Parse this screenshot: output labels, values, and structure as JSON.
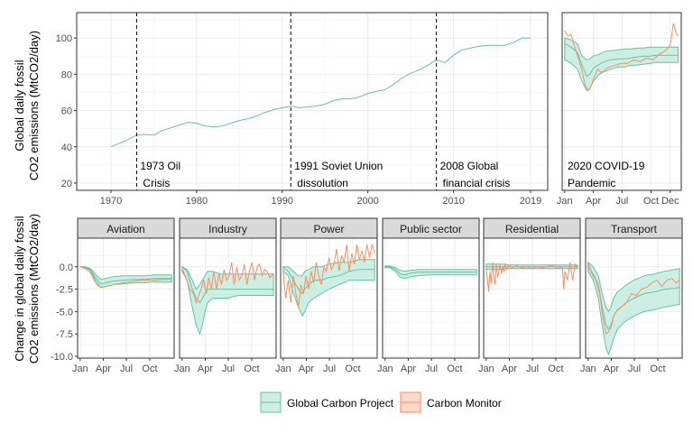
{
  "chart_data": [
    {
      "type": "line",
      "panel": "long-term",
      "ylabel_lines": [
        "Global daily fossil",
        "CO2 emissions (MtCO2/day)"
      ],
      "xlim": [
        1966,
        2021
      ],
      "ylim": [
        16,
        114
      ],
      "xticks": [
        1970,
        1980,
        1990,
        2000,
        2010
      ],
      "xtick_last_label": "2019",
      "xtick_last_value": 2019,
      "yticks": [
        20,
        40,
        60,
        80,
        100
      ],
      "grid": true,
      "series_color": "#66c2a5",
      "series": [
        {
          "name": "",
          "x": [
            1970,
            1971,
            1972,
            1973,
            1974,
            1975,
            1976,
            1977,
            1978,
            1979,
            1980,
            1981,
            1982,
            1983,
            1984,
            1985,
            1986,
            1987,
            1988,
            1989,
            1990,
            1991,
            1992,
            1993,
            1994,
            1995,
            1996,
            1997,
            1998,
            1999,
            2000,
            2001,
            2002,
            2003,
            2004,
            2005,
            2006,
            2007,
            2008,
            2009,
            2010,
            2011,
            2012,
            2013,
            2014,
            2015,
            2016,
            2017,
            2018,
            2019
          ],
          "y": [
            40,
            42,
            44,
            46.5,
            46.8,
            46.5,
            49,
            50.5,
            52,
            53.5,
            53,
            51.5,
            51,
            51.5,
            53,
            54.5,
            55.5,
            57,
            59,
            60.5,
            61.5,
            62.5,
            61.5,
            62,
            62.5,
            63.5,
            65.5,
            66.5,
            66.5,
            67.5,
            69.5,
            70.5,
            71.5,
            74.5,
            78,
            80.5,
            82.5,
            85,
            88,
            86.5,
            90.5,
            93.5,
            94.5,
            95.5,
            96,
            96,
            96,
            97.5,
            100,
            100
          ]
        }
      ],
      "events": [
        {
          "x": 1973,
          "lines": [
            "1973 Oil",
            "Crisis"
          ]
        },
        {
          "x": 1991,
          "lines": [
            "1991 Soviet Union",
            "dissolution"
          ]
        },
        {
          "x": 2008,
          "lines": [
            "2008 Global",
            "financial crisis"
          ]
        }
      ]
    },
    {
      "type": "line",
      "panel": "2020",
      "annotation_lines": [
        "2020 COVID-19",
        "Pandemic"
      ],
      "months": [
        "Jan",
        "Apr",
        "Jul",
        "Oct",
        "Dec"
      ],
      "month_days": [
        0,
        91,
        182,
        274,
        335
      ],
      "ylim": [
        16,
        114
      ],
      "grid": true,
      "gcp_days": [
        0,
        20,
        40,
        55,
        70,
        80,
        90,
        100,
        110,
        120,
        135,
        150,
        170,
        190,
        210,
        230,
        250,
        270,
        290,
        310,
        330,
        350,
        360
      ],
      "gcp_lower": [
        88,
        86,
        83,
        76,
        71,
        72,
        76,
        78,
        80,
        81,
        82,
        83,
        84,
        84,
        85,
        85,
        85.5,
        86,
        86.5,
        86.5,
        86.5,
        86.5,
        86.5
      ],
      "gcp_center": [
        97,
        95,
        92,
        85,
        79,
        80,
        83,
        84.5,
        85.5,
        86.5,
        87.5,
        88,
        88.5,
        88.5,
        89,
        89.5,
        90,
        90,
        90.5,
        90.5,
        90.5,
        90.5,
        90.5
      ],
      "gcp_upper": [
        100,
        99,
        97,
        90,
        88,
        88.5,
        90,
        90.5,
        91,
        92,
        93,
        93,
        93.5,
        94,
        94,
        94.5,
        94.5,
        95,
        95,
        95,
        95,
        95,
        95
      ],
      "cm_days": [
        0,
        10,
        20,
        30,
        45,
        55,
        65,
        75,
        85,
        95,
        105,
        115,
        125,
        140,
        160,
        180,
        200,
        220,
        240,
        260,
        280,
        300,
        320,
        335,
        345,
        355,
        360
      ],
      "cm_values": [
        104,
        101,
        102,
        96,
        88,
        82,
        74,
        71,
        74,
        79,
        83,
        81,
        82,
        84,
        85,
        86,
        86,
        88,
        87,
        89,
        88,
        91,
        93,
        96,
        108,
        102,
        101
      ]
    },
    {
      "type": "line",
      "panel": "sectors",
      "ylabel_lines": [
        "Change in global daily fossil",
        "CO2 emissions (MtCO2/day)"
      ],
      "ylim": [
        -10.2,
        3.2
      ],
      "yticks": [
        0,
        -2.5,
        -5,
        -7.5,
        -10
      ],
      "ytick_labels": [
        "0.0",
        "-2.5",
        "-5.0",
        "-7.5",
        "-10.0"
      ],
      "months": [
        "Jan",
        "Apr",
        "Jul",
        "Oct"
      ],
      "month_days": [
        0,
        91,
        182,
        274
      ],
      "grid": true,
      "panels": [
        {
          "name": "Aviation",
          "lo_days": [
            0,
            20,
            40,
            60,
            80,
            100,
            130,
            170,
            210,
            250,
            290,
            330,
            360
          ],
          "lo": [
            0,
            -0.1,
            -0.4,
            -1.5,
            -2.3,
            -2.2,
            -2.0,
            -1.9,
            -1.8,
            -1.8,
            -1.7,
            -1.7,
            -1.7
          ],
          "mid": [
            0,
            0,
            -0.3,
            -1.2,
            -1.9,
            -1.8,
            -1.6,
            -1.5,
            -1.4,
            -1.4,
            -1.3,
            -1.3,
            -1.3
          ],
          "hi": [
            0,
            0,
            -0.2,
            -0.8,
            -1.4,
            -1.3,
            -1.1,
            -1.0,
            -1.0,
            -1.0,
            -0.9,
            -0.9,
            -0.9
          ],
          "cm_days": [
            0,
            20,
            40,
            60,
            80,
            100,
            130,
            170,
            210,
            250,
            290,
            330,
            360
          ],
          "cm": [
            0,
            -0.2,
            -0.6,
            -1.8,
            -2.3,
            -2.2,
            -2.0,
            -1.8,
            -1.6,
            -1.5,
            -1.5,
            -1.4,
            -1.4
          ]
        },
        {
          "name": "Industry",
          "lo_days": [
            0,
            20,
            40,
            55,
            70,
            80,
            90,
            100,
            120,
            150,
            180,
            220,
            260,
            300,
            340,
            360
          ],
          "lo": [
            -0.5,
            -1.5,
            -4.5,
            -6.5,
            -7.5,
            -6.5,
            -5,
            -4,
            -3.5,
            -3.5,
            -3.5,
            -3.2,
            -3.2,
            -3.2,
            -3.2,
            -3.2
          ],
          "mid": [
            0,
            -0.5,
            -2.5,
            -3.5,
            -4,
            -3.5,
            -3,
            -2.5,
            -2.5,
            -2.5,
            -2.5,
            -2.5,
            -2.5,
            -2.5,
            -2.5,
            -2.5
          ],
          "hi": [
            0,
            -0.3,
            -1.5,
            -2.5,
            -2,
            -1.5,
            -1,
            -0.5,
            -0.5,
            -0.8,
            -0.8,
            -0.8,
            -0.8,
            -0.8,
            -0.8,
            -0.8
          ],
          "cm_days": [
            0,
            15,
            30,
            45,
            55,
            65,
            75,
            85,
            95,
            105,
            115,
            125,
            135,
            145,
            155,
            165,
            175,
            185,
            195,
            205,
            215,
            225,
            235,
            245,
            255,
            265,
            275,
            285,
            295,
            305,
            315,
            325,
            335,
            345,
            360
          ],
          "cm": [
            -0.2,
            -1.2,
            -2.5,
            -3,
            -4,
            -3.2,
            -2.5,
            -1.5,
            -3,
            -1.2,
            -2.5,
            -0.5,
            -2.5,
            -0.8,
            -2,
            -0.3,
            -1.5,
            -1,
            0.5,
            -2,
            0,
            -1.5,
            -1,
            0.3,
            -2,
            -0.5,
            0.5,
            -1.5,
            0,
            0.3,
            -1,
            -0.3,
            -0.5,
            -1.2,
            -0.8
          ]
        },
        {
          "name": "Power",
          "lo_days": [
            0,
            20,
            40,
            60,
            75,
            85,
            100,
            120,
            150,
            180,
            220,
            260,
            300,
            340,
            360
          ],
          "lo": [
            -0.5,
            -1,
            -3,
            -4.5,
            -5.5,
            -5,
            -4,
            -3.5,
            -3,
            -2.5,
            -2,
            -1.5,
            -1.5,
            -1.5,
            -1.5
          ],
          "mid": [
            0,
            -0.5,
            -1.5,
            -2.5,
            -3,
            -2.5,
            -2,
            -1.5,
            -1.5,
            -1.2,
            -1,
            -0.5,
            -0.3,
            -0.3,
            -0.3
          ],
          "hi": [
            0,
            0,
            -0.5,
            -1,
            -1,
            -0.5,
            -0.3,
            0,
            0,
            0.3,
            0.5,
            0.5,
            0.8,
            0.8,
            0.8
          ],
          "cm_days": [
            0,
            10,
            20,
            30,
            40,
            50,
            60,
            70,
            80,
            90,
            100,
            110,
            120,
            130,
            140,
            150,
            160,
            170,
            180,
            190,
            200,
            210,
            220,
            230,
            240,
            250,
            260,
            270,
            280,
            290,
            300,
            310,
            320,
            330,
            340,
            350,
            360
          ],
          "cm": [
            -0.5,
            -3.5,
            -1.5,
            -4,
            -1,
            -3,
            -4.5,
            -2,
            -3,
            -1,
            -2.5,
            -0.5,
            -1.8,
            0.5,
            -1,
            -2,
            0,
            -0.5,
            1,
            -0.3,
            0.3,
            2,
            -0.5,
            1.2,
            0.5,
            2.5,
            -0.5,
            1.5,
            0.3,
            2.5,
            0.8,
            1.8,
            0.5,
            2.5,
            1,
            2.5,
            1.5
          ]
        },
        {
          "name": "Public sector",
          "lo_days": [
            0,
            20,
            40,
            60,
            80,
            100,
            130,
            170,
            210,
            250,
            290,
            330,
            360
          ],
          "lo": [
            -0.1,
            -0.1,
            -0.5,
            -1.2,
            -1.3,
            -1.1,
            -1.0,
            -0.9,
            -0.9,
            -0.9,
            -0.9,
            -0.9,
            -0.9
          ],
          "mid": [
            0,
            0,
            -0.3,
            -0.8,
            -0.9,
            -0.7,
            -0.6,
            -0.6,
            -0.6,
            -0.6,
            -0.6,
            -0.6,
            -0.6
          ],
          "hi": [
            0.1,
            0.1,
            -0.1,
            -0.4,
            -0.5,
            -0.4,
            -0.3,
            -0.3,
            -0.3,
            -0.3,
            -0.3,
            -0.3,
            -0.3
          ],
          "cm_days": [],
          "cm": []
        },
        {
          "name": "Residential",
          "lo_days": [
            0,
            30,
            60,
            90,
            120,
            150,
            180,
            210,
            240,
            270,
            300,
            330,
            360
          ],
          "lo": [
            -0.3,
            -0.3,
            -0.3,
            -0.2,
            -0.2,
            -0.2,
            -0.2,
            -0.2,
            -0.2,
            -0.2,
            -0.2,
            -0.2,
            -0.2
          ],
          "mid": [
            0,
            0,
            0,
            0,
            0,
            0,
            0,
            0,
            0,
            0,
            0,
            0,
            0
          ],
          "hi": [
            0.3,
            0.3,
            0.3,
            0.2,
            0.2,
            0.2,
            0.2,
            0.2,
            0.2,
            0.2,
            0.2,
            0.2,
            0.2
          ],
          "cm_days": [
            0,
            5,
            10,
            15,
            20,
            25,
            30,
            35,
            40,
            45,
            50,
            55,
            60,
            65,
            70,
            75,
            80,
            90,
            100,
            110,
            120,
            140,
            160,
            180,
            200,
            220,
            240,
            260,
            280,
            300,
            305,
            310,
            320,
            330,
            340,
            350,
            360
          ],
          "cm": [
            0,
            -1.5,
            -2.8,
            -0.5,
            -1.8,
            0.5,
            -1,
            -2,
            0.3,
            -1.2,
            -0.5,
            0.3,
            -0.8,
            0,
            -0.5,
            0.4,
            -0.3,
            0.2,
            -0.2,
            0,
            0.1,
            -0.1,
            0,
            -0.2,
            0,
            -0.1,
            0,
            0.2,
            -0.2,
            0,
            -2.5,
            -0.5,
            -1.5,
            0.5,
            -1.5,
            0.3,
            0
          ]
        },
        {
          "name": "Transport",
          "lo_days": [
            0,
            20,
            40,
            55,
            70,
            80,
            90,
            100,
            115,
            130,
            150,
            180,
            220,
            260,
            300,
            340,
            360
          ],
          "lo": [
            -0.5,
            -1.5,
            -3.5,
            -6.5,
            -9,
            -9.8,
            -9,
            -8,
            -7,
            -6.5,
            -6,
            -5.5,
            -5,
            -4.8,
            -4.5,
            -4.3,
            -4.2
          ],
          "mid": [
            0,
            -0.8,
            -2,
            -4.5,
            -6.5,
            -7,
            -6.5,
            -5.5,
            -4.8,
            -4.5,
            -4,
            -3.5,
            -3,
            -2.8,
            -2.5,
            -2.4,
            -2.3
          ],
          "hi": [
            0.5,
            0,
            -1,
            -3,
            -4.5,
            -5,
            -4.5,
            -3.5,
            -2.8,
            -2.5,
            -2,
            -1.5,
            -1,
            -0.8,
            -0.5,
            -0.3,
            -0.2
          ],
          "cm_days": [
            0,
            15,
            30,
            45,
            60,
            70,
            80,
            90,
            100,
            110,
            130,
            150,
            170,
            190,
            210,
            230,
            250,
            270,
            290,
            310,
            330,
            345,
            360
          ],
          "cm": [
            0.5,
            -0.8,
            -1.5,
            -3,
            -6,
            -7.5,
            -7.3,
            -6.8,
            -5.5,
            -5,
            -4.5,
            -4,
            -3,
            -3.2,
            -2.5,
            -2.3,
            -1.8,
            -1.5,
            -2.2,
            -1.5,
            -1.3,
            -1.8,
            -1.5
          ]
        }
      ]
    }
  ],
  "legend": {
    "items": [
      {
        "label": "Global Carbon Project",
        "fill": "#cdeee3",
        "stroke": "#66c2a5"
      },
      {
        "label": "Carbon Monitor",
        "fill": "#fdd9c7",
        "stroke": "#fc8d62"
      }
    ]
  },
  "colors": {
    "gcp": "#66c2a5",
    "gcp_fill": "#cdeee3",
    "cm": "#fc8d62",
    "strip": "#d9d9d9",
    "grid_major": "#ebebeb"
  }
}
